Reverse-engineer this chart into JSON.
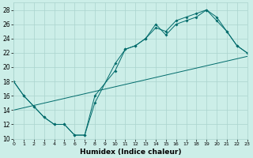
{
  "xlabel": "Humidex (Indice chaleur)",
  "xlim": [
    0,
    23
  ],
  "ylim": [
    10,
    29
  ],
  "yticks": [
    10,
    12,
    14,
    16,
    18,
    20,
    22,
    24,
    26,
    28
  ],
  "xticks": [
    0,
    1,
    2,
    3,
    4,
    5,
    6,
    7,
    8,
    9,
    10,
    11,
    12,
    13,
    14,
    15,
    16,
    17,
    18,
    19,
    20,
    21,
    22,
    23
  ],
  "background_color": "#cceee8",
  "grid_color": "#aad4ce",
  "line_color": "#006b6b",
  "line1_x": [
    0,
    1,
    2,
    3,
    4,
    5,
    6,
    7,
    8,
    10,
    11,
    12,
    13,
    14,
    15,
    16,
    17,
    18,
    19,
    20,
    21,
    22,
    23
  ],
  "line1_y": [
    18,
    16,
    14.5,
    13,
    12,
    12,
    10.5,
    10.5,
    16,
    19.5,
    22.5,
    23,
    24,
    25.5,
    25,
    26.5,
    27,
    27.5,
    28,
    27,
    25,
    23,
    22
  ],
  "line2_x": [
    0,
    1,
    2,
    3,
    4,
    5,
    6,
    7,
    8,
    10,
    11,
    12,
    13,
    14,
    15,
    16,
    17,
    18,
    19,
    20,
    21,
    22,
    23
  ],
  "line2_y": [
    18,
    16,
    14.5,
    13,
    12,
    12,
    10.5,
    10.5,
    15,
    20.5,
    22.5,
    23,
    24,
    26,
    24.5,
    26,
    26.5,
    27,
    28,
    26.5,
    25,
    23,
    22
  ],
  "line3_x": [
    0,
    23
  ],
  "line3_y": [
    14,
    21.5
  ]
}
